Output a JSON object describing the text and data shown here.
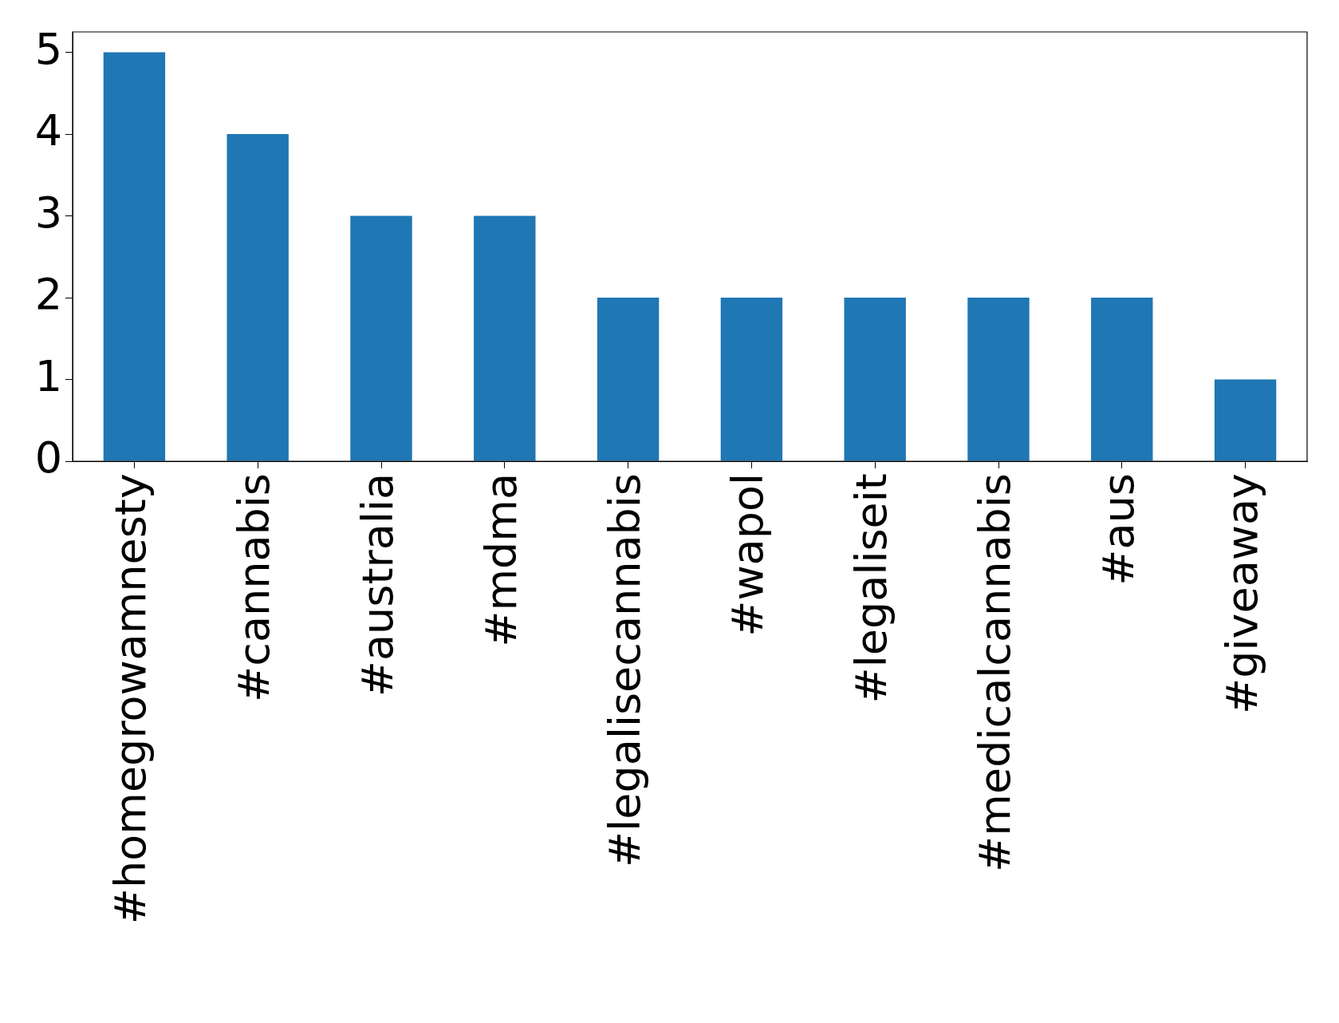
{
  "chart_data": {
    "type": "bar",
    "categories": [
      "#homegrowamnesty",
      "#cannabis",
      "#australia",
      "#mdma",
      "#legalisecannabis",
      "#wapol",
      "#legaliseit",
      "#medicalcannabis",
      "#aus",
      "#giveaway"
    ],
    "values": [
      5,
      4,
      3,
      3,
      2,
      2,
      2,
      2,
      2,
      1
    ],
    "color": "#1f77b4",
    "ylim": [
      0,
      5.25
    ],
    "yticks": [
      0,
      1,
      2,
      3,
      4,
      5
    ],
    "grid": false,
    "legend": false
  }
}
